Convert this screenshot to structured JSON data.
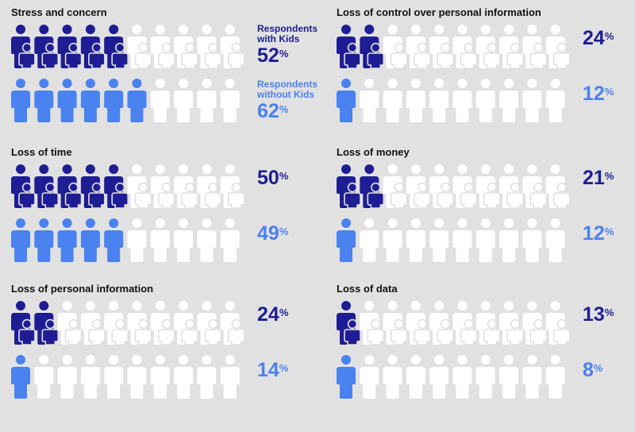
{
  "colors": {
    "background": "#e1e1e1",
    "with_kids": "#1f1d94",
    "without_kids": "#4a82f0",
    "inactive": "#ffffff",
    "title": "#111111"
  },
  "icons": {
    "with_kids": "parent-with-child-icon",
    "without_kids": "person-icon"
  },
  "chart_data": {
    "type": "pictogram",
    "icons_per_row": 10,
    "unit": "%",
    "series": [
      {
        "name": "Respondents with Kids",
        "label": "Respondents\nwith Kids"
      },
      {
        "name": "Respondents without Kids",
        "label": "Respondents\nwithout Kids"
      }
    ],
    "panels": [
      {
        "title": "Stress and concern",
        "with_kids": 52,
        "without_kids": 62,
        "with_kids_icons": 5,
        "without_kids_icons": 6
      },
      {
        "title": "Loss of control over personal information",
        "with_kids": 24,
        "without_kids": 12,
        "with_kids_icons": 2,
        "without_kids_icons": 1
      },
      {
        "title": "Loss of time",
        "with_kids": 50,
        "without_kids": 49,
        "with_kids_icons": 5,
        "without_kids_icons": 5
      },
      {
        "title": "Loss of money",
        "with_kids": 21,
        "without_kids": 12,
        "with_kids_icons": 2,
        "without_kids_icons": 1
      },
      {
        "title": "Loss of personal information",
        "with_kids": 24,
        "without_kids": 14,
        "with_kids_icons": 2,
        "without_kids_icons": 1
      },
      {
        "title": "Loss of data",
        "with_kids": 13,
        "without_kids": 8,
        "with_kids_icons": 1,
        "without_kids_icons": 1
      }
    ]
  }
}
